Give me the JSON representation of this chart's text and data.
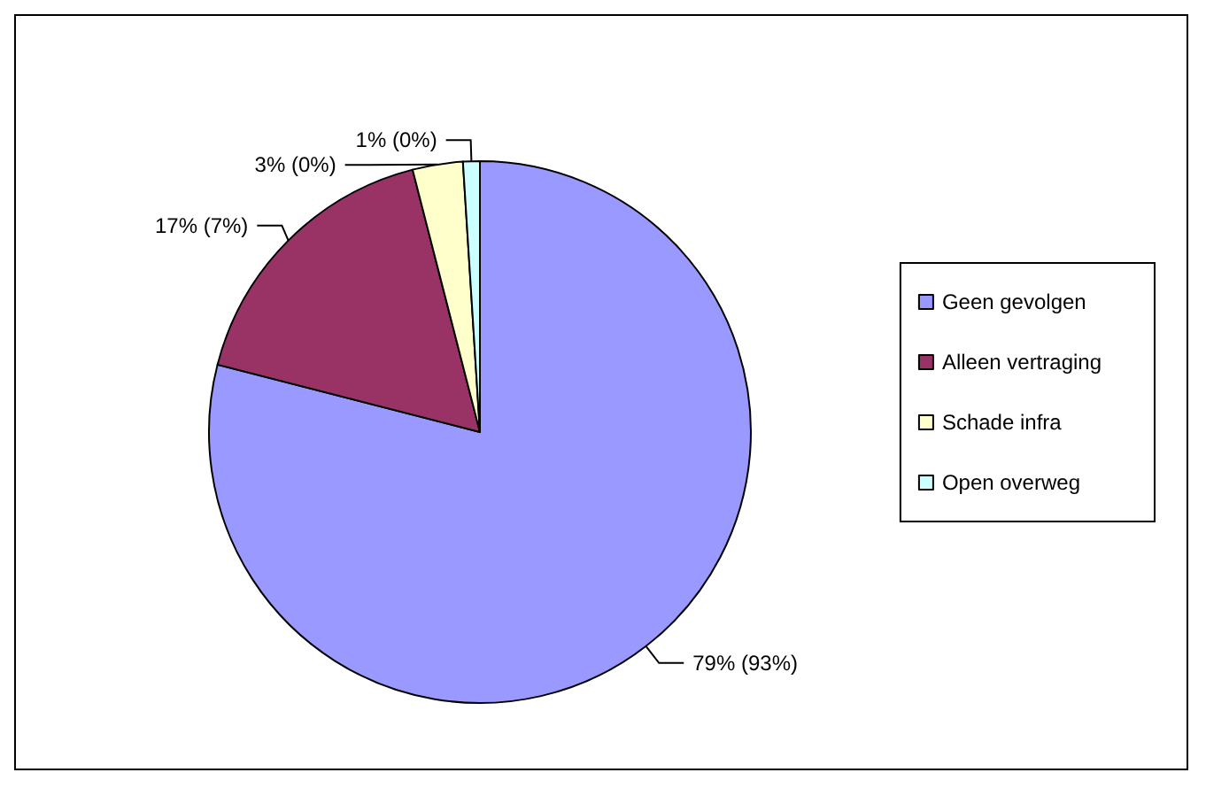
{
  "chart_data": {
    "type": "pie",
    "categories": [
      "Geen gevolgen",
      "Alleen vertraging",
      "Schade infra",
      "Open overweg"
    ],
    "values": [
      79,
      17,
      3,
      1
    ],
    "colors": [
      "#9999ff",
      "#993366",
      "#ffffcc",
      "#ccffff"
    ],
    "value_labels": [
      "79% (93%)",
      "17% (7%)",
      "3% (0%)",
      "1% (0%)"
    ],
    "legend": "right"
  }
}
